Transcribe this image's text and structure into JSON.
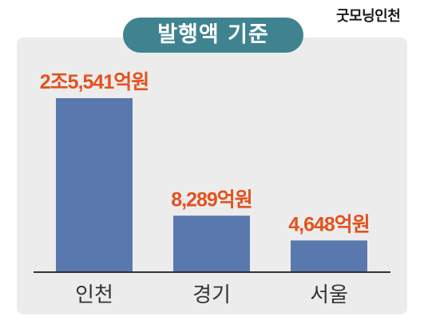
{
  "brand": "굿모닝인천",
  "colors": {
    "bar": "#5978ae",
    "value_label": "#e2531f",
    "title_bg": "#3f8390",
    "panel_bg": "#ececec",
    "axis": "#333333"
  },
  "chart_data": {
    "type": "bar",
    "title": "발행액 기준",
    "categories": [
      "인천",
      "경기",
      "서울"
    ],
    "values": [
      25541,
      8289,
      4648
    ],
    "value_labels": [
      "2조5,541억원",
      "8,289억원",
      "4,648억원"
    ],
    "unit": "억원",
    "ylim": [
      0,
      30000
    ],
    "grid": false,
    "legend": "none"
  }
}
